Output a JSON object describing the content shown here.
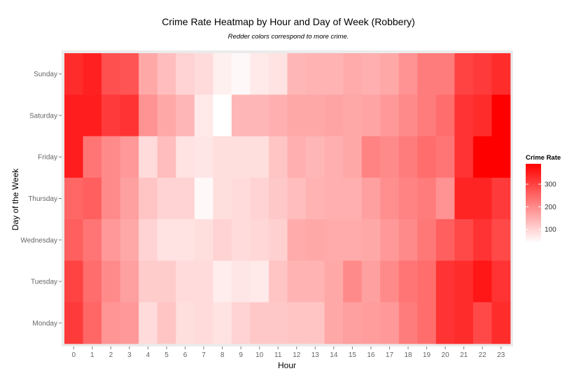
{
  "chart_data": {
    "type": "heatmap",
    "title": "Crime Rate Heatmap by Hour and Day of Week (Robbery)",
    "subtitle": "Redder colors correspond to more crime.",
    "xlabel": "Hour",
    "ylabel": "Day of the Week",
    "x": [
      "0",
      "1",
      "2",
      "3",
      "4",
      "5",
      "6",
      "7",
      "8",
      "9",
      "10",
      "11",
      "12",
      "13",
      "14",
      "15",
      "16",
      "17",
      "18",
      "19",
      "20",
      "21",
      "22",
      "23"
    ],
    "y": [
      "Sunday",
      "Saturday",
      "Friday",
      "Thursday",
      "Wednesday",
      "Tuesday",
      "Monday"
    ],
    "values": [
      [
        330,
        345,
        280,
        275,
        160,
        130,
        100,
        90,
        60,
        50,
        70,
        80,
        140,
        145,
        145,
        155,
        150,
        160,
        190,
        220,
        220,
        300,
        310,
        330
      ],
      [
        350,
        350,
        310,
        320,
        190,
        160,
        140,
        70,
        40,
        140,
        140,
        150,
        160,
        160,
        165,
        160,
        165,
        180,
        200,
        220,
        240,
        320,
        330,
        390
      ],
      [
        350,
        230,
        200,
        180,
        90,
        130,
        80,
        75,
        85,
        85,
        85,
        120,
        150,
        140,
        150,
        160,
        210,
        200,
        220,
        240,
        230,
        320,
        390,
        390
      ],
      [
        250,
        260,
        200,
        170,
        120,
        100,
        100,
        50,
        85,
        90,
        100,
        115,
        130,
        145,
        150,
        150,
        170,
        195,
        210,
        220,
        190,
        340,
        340,
        310
      ],
      [
        260,
        230,
        180,
        160,
        100,
        80,
        80,
        85,
        100,
        90,
        95,
        105,
        155,
        160,
        155,
        155,
        160,
        180,
        200,
        225,
        260,
        290,
        320,
        290
      ],
      [
        300,
        240,
        200,
        170,
        110,
        110,
        90,
        90,
        65,
        75,
        70,
        120,
        145,
        145,
        160,
        200,
        170,
        200,
        230,
        240,
        320,
        330,
        360,
        320
      ],
      [
        310,
        250,
        185,
        180,
        90,
        120,
        85,
        90,
        80,
        100,
        115,
        115,
        120,
        120,
        160,
        170,
        175,
        180,
        220,
        240,
        320,
        330,
        290,
        330
      ]
    ],
    "legend": {
      "title": "Crime Rate",
      "ticks": [
        100,
        200,
        300
      ],
      "position": "right"
    },
    "range": [
      40,
      390
    ],
    "colors": {
      "low": "#ffffff",
      "high": "#ff0000",
      "panel": "#ebebeb"
    },
    "grid": true
  }
}
